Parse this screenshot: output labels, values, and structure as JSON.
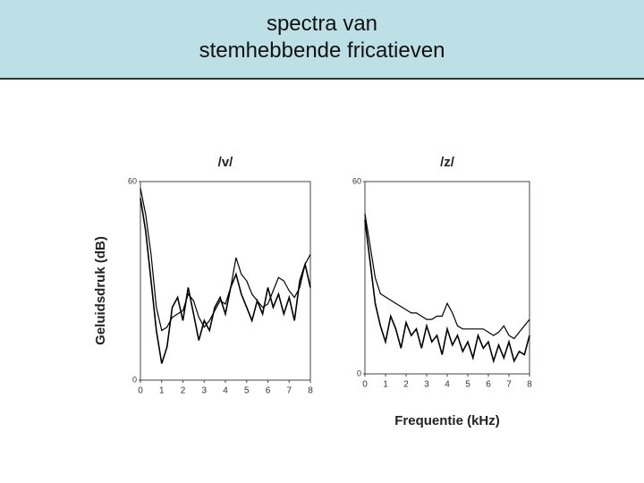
{
  "header": {
    "title_lines": [
      "spectra van",
      "stemhebbende fricatieven"
    ]
  },
  "y_label": "Geluidsdruk (dB)",
  "x_label": "Frequentie (kHz)",
  "chart_data": [
    {
      "type": "line",
      "title": "/v/",
      "x": [
        0,
        0.25,
        0.5,
        0.75,
        1,
        1.25,
        1.5,
        1.75,
        2,
        2.25,
        2.5,
        2.75,
        3,
        3.25,
        3.5,
        3.75,
        4,
        4.25,
        4.5,
        4.75,
        5,
        5.25,
        5.5,
        5.75,
        6,
        6.25,
        6.5,
        6.75,
        7,
        7.25,
        7.5,
        7.75,
        8
      ],
      "series": [
        {
          "color": "#000000",
          "values": [
            55,
            45,
            30,
            15,
            5,
            10,
            22,
            25,
            18,
            28,
            20,
            12,
            18,
            15,
            22,
            25,
            20,
            28,
            32,
            26,
            22,
            18,
            24,
            20,
            28,
            22,
            26,
            20,
            25,
            18,
            30,
            35,
            28
          ]
        },
        {
          "color": "#000000",
          "values": [
            58,
            50,
            38,
            22,
            15,
            16,
            19,
            20,
            21,
            26,
            24,
            19,
            16,
            18,
            21,
            24,
            23,
            28,
            37,
            32,
            30,
            26,
            24,
            22,
            23,
            27,
            31,
            30,
            27,
            25,
            28,
            35,
            38
          ]
        }
      ],
      "xlim": [
        0,
        8
      ],
      "xticks": [
        0,
        1,
        2,
        3,
        4,
        5,
        6,
        7,
        8
      ],
      "ylim": [
        0,
        60
      ],
      "yticks": [
        0,
        60
      ]
    },
    {
      "type": "line",
      "title": "/z/",
      "x": [
        0,
        0.25,
        0.5,
        0.75,
        1,
        1.25,
        1.5,
        1.75,
        2,
        2.25,
        2.5,
        2.75,
        3,
        3.25,
        3.5,
        3.75,
        4,
        4.25,
        4.5,
        4.75,
        5,
        5.25,
        5.5,
        5.75,
        6,
        6.25,
        6.5,
        6.75,
        7,
        7.25,
        7.5,
        7.75,
        8
      ],
      "series": [
        {
          "color": "#000000",
          "values": [
            48,
            35,
            22,
            15,
            10,
            18,
            14,
            8,
            16,
            12,
            14,
            8,
            15,
            10,
            12,
            6,
            14,
            9,
            12,
            7,
            10,
            5,
            12,
            8,
            10,
            4,
            9,
            5,
            10,
            4,
            7,
            6,
            12
          ]
        },
        {
          "color": "#000000",
          "values": [
            50,
            40,
            30,
            25,
            24,
            23,
            22,
            21,
            20,
            19,
            19,
            18,
            17,
            17,
            18,
            18,
            22,
            19,
            15,
            14,
            14,
            14,
            14,
            14,
            13,
            12,
            13,
            15,
            12,
            11,
            13,
            15,
            17
          ]
        }
      ],
      "xlim": [
        0,
        8
      ],
      "xticks": [
        0,
        1,
        2,
        3,
        4,
        5,
        6,
        7,
        8
      ],
      "ylim": [
        0,
        60
      ],
      "yticks": [
        0,
        60
      ]
    }
  ]
}
